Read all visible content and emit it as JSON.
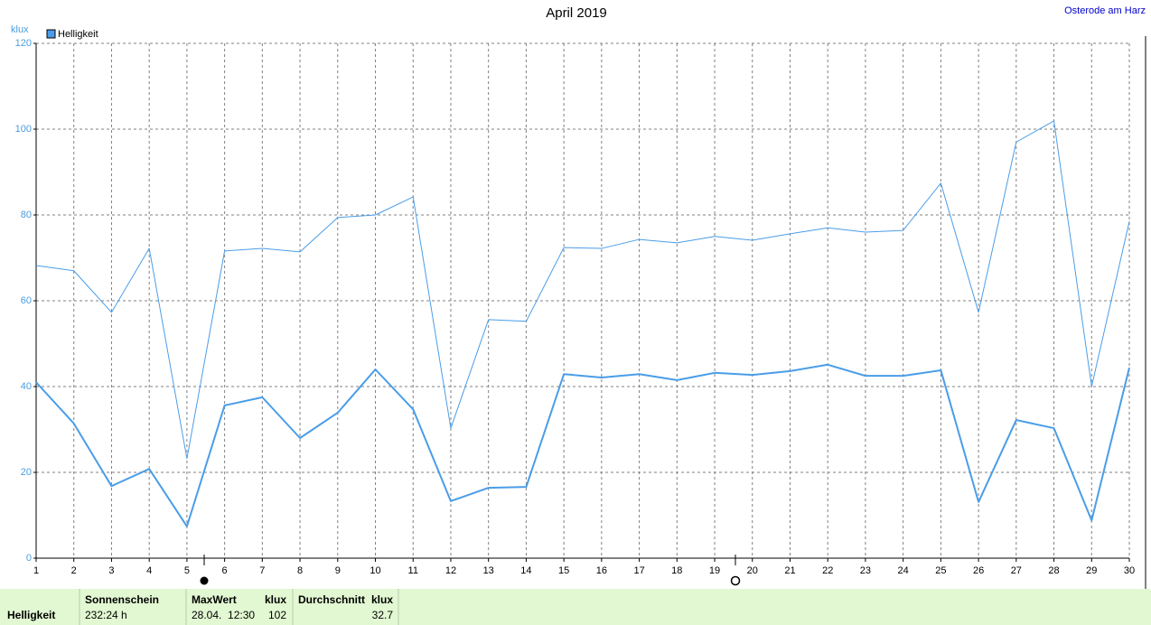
{
  "chart_data": {
    "type": "line",
    "title": "April 2019",
    "annotations": [
      "Osterode am Harz"
    ],
    "y_label": "klux",
    "x": [
      1,
      2,
      3,
      4,
      5,
      6,
      7,
      8,
      9,
      10,
      11,
      12,
      13,
      14,
      15,
      16,
      17,
      18,
      19,
      20,
      21,
      22,
      23,
      24,
      25,
      26,
      27,
      28,
      29,
      30
    ],
    "xlim": [
      1,
      30
    ],
    "xticks": [
      1,
      2,
      3,
      4,
      5,
      6,
      7,
      8,
      9,
      10,
      11,
      12,
      13,
      14,
      15,
      16,
      17,
      18,
      19,
      20,
      21,
      22,
      23,
      24,
      25,
      26,
      27,
      28,
      29,
      30
    ],
    "ylim": [
      0,
      120
    ],
    "yticks": [
      0,
      20,
      40,
      60,
      80,
      100,
      120
    ],
    "grid": true,
    "legend": "top-left",
    "series": [
      {
        "name": "Helligkeit",
        "color": "#4a9de8",
        "width": 2,
        "values": [
          41,
          31.4,
          16.8,
          20.8,
          7.4,
          35.6,
          37.5,
          28,
          33.9,
          44,
          34.7,
          13.3,
          16.4,
          16.6,
          42.9,
          42.1,
          42.9,
          41.5,
          43.2,
          42.7,
          43.6,
          45.1,
          42.5,
          42.5,
          43.8,
          13.1,
          32.2,
          30.3,
          8.8,
          44.4
        ]
      },
      {
        "color": "#4a9de8",
        "width": 1,
        "values": [
          68.2,
          67,
          57.3,
          72.2,
          23.2,
          71.6,
          72.2,
          71.4,
          79.4,
          80,
          84.2,
          30.3,
          55.6,
          55.2,
          72.4,
          72.2,
          74.3,
          73.5,
          75,
          74.1,
          75.6,
          77,
          76,
          76.4,
          87.4,
          57.3,
          97,
          101.9,
          40,
          78.5
        ]
      }
    ]
  },
  "footer": {
    "row_label": "Helligkeit",
    "sunshine": {
      "label": "Sonnenschein",
      "value": "232:24 h"
    },
    "max": {
      "label": "MaxWert",
      "unit": "klux",
      "when": "28.04.  12:30",
      "value": 102
    },
    "mean": {
      "label": "Durchschnitt",
      "unit": "klux",
      "value": 32.7
    }
  }
}
